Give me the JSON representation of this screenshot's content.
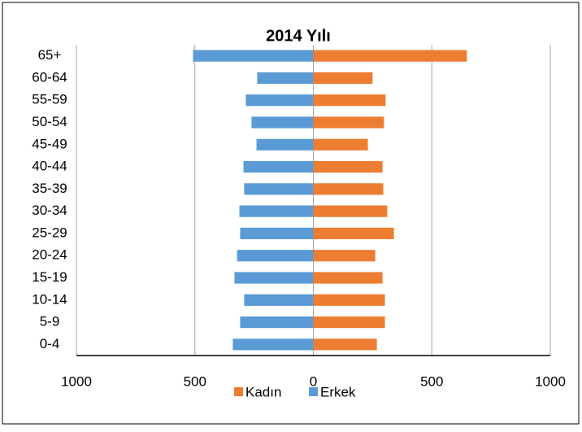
{
  "chart_data": {
    "type": "bar",
    "orientation": "horizontal",
    "stacked": true,
    "title": "2014 Yılı",
    "categories": [
      "65+",
      "60-64",
      "55-59",
      "50-54",
      "45-49",
      "40-44",
      "35-39",
      "30-34",
      "25-29",
      "20-24",
      "15-19",
      "10-14",
      "5-9",
      "0-4"
    ],
    "series": [
      {
        "name": "Kadın",
        "color": "#ED7D31",
        "values": [
          648,
          250,
          305,
          298,
          230,
          292,
          295,
          312,
          340,
          261,
          292,
          302,
          302,
          268
        ]
      },
      {
        "name": "Erkek",
        "color": "#5B9BD5",
        "values": [
          -508,
          -237,
          -285,
          -261,
          -240,
          -295,
          -292,
          -312,
          -309,
          -322,
          -333,
          -292,
          -309,
          -340
        ]
      }
    ],
    "xlim": [
      -1000,
      1000
    ],
    "xticks": [
      {
        "value": -1000,
        "label": "1000"
      },
      {
        "value": -500,
        "label": "500"
      },
      0,
      500,
      1000
    ],
    "grid": true,
    "legend": "bottom"
  }
}
